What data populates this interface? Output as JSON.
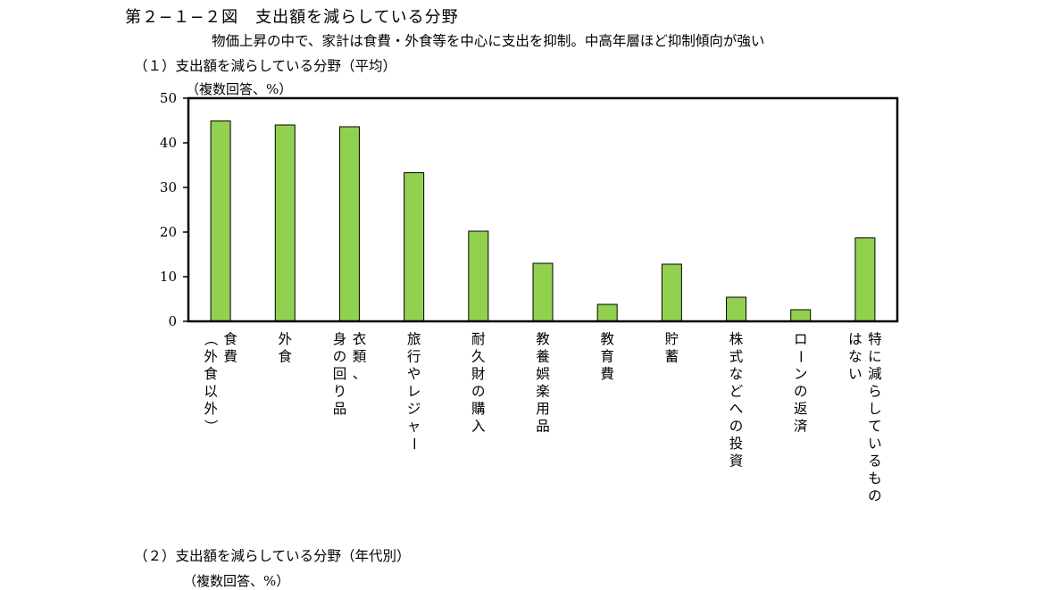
{
  "figure": {
    "title": "第２−１−２図　支出額を減らしている分野",
    "subtitle": "物価上昇の中で、家計は食費・外食等を中心に支出を抑制。中高年層ほど抑制傾向が強い"
  },
  "section1": {
    "title": "（１）支出額を減らしている分野（平均）"
  },
  "section2": {
    "title": "（２）支出額を減らしている分野（年代別）",
    "unit": "（複数回答、%）"
  },
  "chart_data": {
    "type": "bar",
    "title": "（１）支出額を減らしている分野（平均）",
    "unit_label": "（複数回答、%）",
    "categories": [
      [
        "食費",
        "（外食以外）"
      ],
      [
        "外食"
      ],
      [
        "衣類、",
        "身の回り品"
      ],
      [
        "旅行やレジャー"
      ],
      [
        "耐久財の購入"
      ],
      [
        "教養娯楽用品"
      ],
      [
        "教育費"
      ],
      [
        "貯蓄"
      ],
      [
        "株式などへの投資"
      ],
      [
        "ローンの返済"
      ],
      [
        "特に減らしているもの",
        "はない"
      ]
    ],
    "values": [
      44.9,
      44.0,
      43.6,
      33.3,
      20.2,
      13.0,
      3.8,
      12.8,
      5.4,
      2.6,
      18.7
    ],
    "ylim": [
      0,
      50
    ],
    "yticks": [
      "0",
      "10",
      "20",
      "30",
      "40",
      "50"
    ],
    "bar_color": "#92d050",
    "grid": false
  }
}
